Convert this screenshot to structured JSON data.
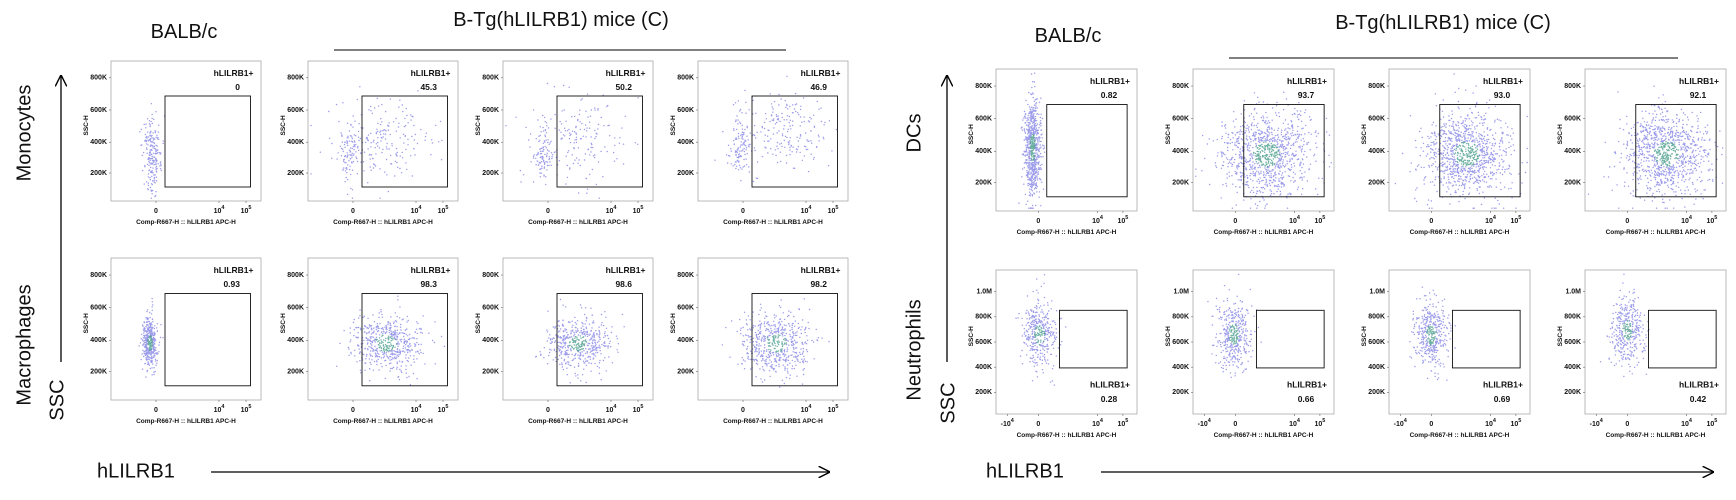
{
  "groups": [
    {
      "title_left": "BALB/c",
      "title_right": "B-Tg(hLILRB1) mice (C)",
      "x_axis_label": "hLILRB1",
      "y_axis_label": "SSC",
      "rows": [
        {
          "label": "Monocytes",
          "y_label": "SSC-H",
          "x_label": "Comp-R667-H :: hLILRB1 APC-H",
          "yticks": [
            "800K",
            "600K",
            "400K",
            "200K"
          ],
          "xticks": [
            {
              "text": "0"
            },
            {
              "text": "10",
              "sup": "4"
            },
            {
              "text": "10",
              "sup": "5"
            }
          ],
          "panels": [
            {
              "gate": "hLILRB1+",
              "value": "0"
            },
            {
              "gate": "hLILRB1+",
              "value": "45.3"
            },
            {
              "gate": "hLILRB1+",
              "value": "50.2"
            },
            {
              "gate": "hLILRB1+",
              "value": "46.9"
            }
          ]
        },
        {
          "label": "Macrophages",
          "y_label": "SSC-H",
          "x_label": "Comp-R667-H :: hLILRB1 APC-H",
          "yticks": [
            "800K",
            "600K",
            "400K",
            "200K"
          ],
          "xticks": [
            {
              "text": "0"
            },
            {
              "text": "10",
              "sup": "4"
            },
            {
              "text": "10",
              "sup": "5"
            }
          ],
          "panels": [
            {
              "gate": "hLILRB1+",
              "value": "0.93"
            },
            {
              "gate": "hLILRB1+",
              "value": "98.3"
            },
            {
              "gate": "hLILRB1+",
              "value": "98.6"
            },
            {
              "gate": "hLILRB1+",
              "value": "98.2"
            }
          ]
        }
      ]
    },
    {
      "title_left": "BALB/c",
      "title_right": "B-Tg(hLILRB1) mice (C)",
      "x_axis_label": "hLILRB1",
      "y_axis_label": "SSC",
      "rows": [
        {
          "label": "DCs",
          "y_label": "SSC-H",
          "x_label": "Comp-R667-H :: hLILRB1 APC-H",
          "yticks": [
            "800K",
            "600K",
            "400K",
            "200K"
          ],
          "xticks": [
            {
              "text": "0"
            },
            {
              "text": "10",
              "sup": "4"
            },
            {
              "text": "10",
              "sup": "5"
            }
          ],
          "panels": [
            {
              "gate": "hLILRB1+",
              "value": "0.82"
            },
            {
              "gate": "hLILRB1+",
              "value": "93.7"
            },
            {
              "gate": "hLILRB1+",
              "value": "93.0"
            },
            {
              "gate": "hLILRB1+",
              "value": "92.1"
            }
          ]
        },
        {
          "label": "Neutrophils",
          "y_label": "SSC-H",
          "x_label": "Comp-R667-H :: hLILRB1 APC-H",
          "yticks": [
            "1.0M",
            "800K",
            "600K",
            "400K",
            "200K"
          ],
          "xticks": [
            {
              "text": "-10",
              "sup": "4"
            },
            {
              "text": "0"
            },
            {
              "text": "10",
              "sup": "4"
            },
            {
              "text": "10",
              "sup": "5"
            }
          ],
          "panels": [
            {
              "gate": "hLILRB1+",
              "value": "0.28"
            },
            {
              "gate": "hLILRB1+",
              "value": "0.66"
            },
            {
              "gate": "hLILRB1+",
              "value": "0.69"
            },
            {
              "gate": "hLILRB1+",
              "value": "0.42"
            }
          ]
        }
      ]
    }
  ]
}
